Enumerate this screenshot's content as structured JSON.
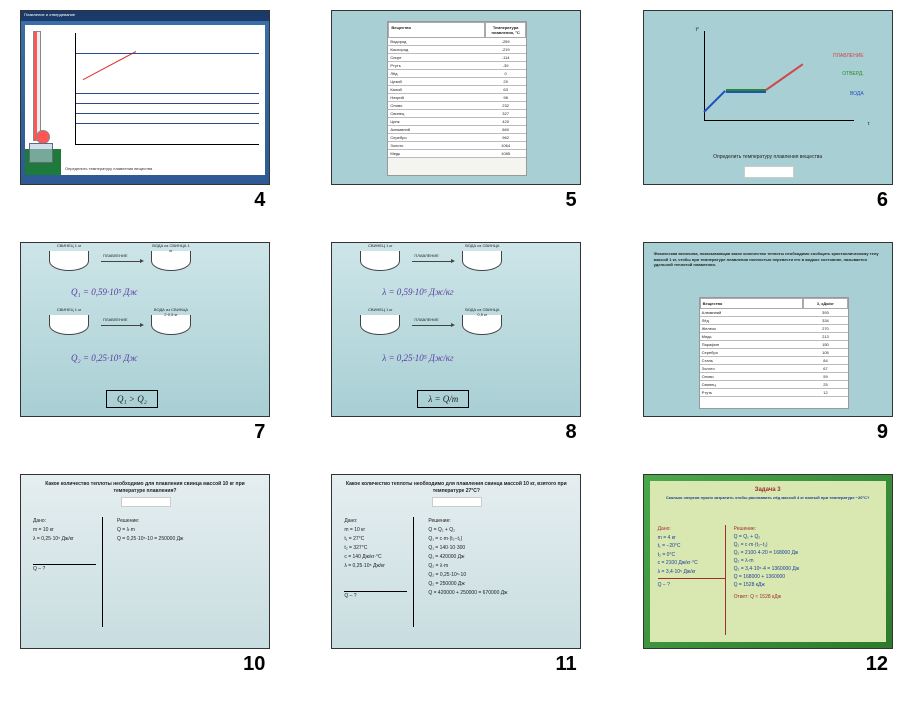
{
  "slides": {
    "4": {
      "num": "4",
      "header": "Плавление и отвердевание",
      "caption": "Определить температуру плавления вещества"
    },
    "5": {
      "num": "5",
      "table_header": {
        "c1": "Вещество",
        "c2": "Температура плавления, °C"
      },
      "rows": [
        {
          "c1": "Водород",
          "c2": "-259"
        },
        {
          "c1": "Кислород",
          "c2": "-219"
        },
        {
          "c1": "Спирт",
          "c2": "-114"
        },
        {
          "c1": "Ртуть",
          "c2": "-39"
        },
        {
          "c1": "Лёд",
          "c2": "0"
        },
        {
          "c1": "Цезий",
          "c2": "29"
        },
        {
          "c1": "Калий",
          "c2": "63"
        },
        {
          "c1": "Натрий",
          "c2": "98"
        },
        {
          "c1": "Олово",
          "c2": "232"
        },
        {
          "c1": "Свинец",
          "c2": "327"
        },
        {
          "c1": "Цинк",
          "c2": "420"
        },
        {
          "c1": "Алюминий",
          "c2": "660"
        },
        {
          "c1": "Серебро",
          "c2": "962"
        },
        {
          "c1": "Золото",
          "c2": "1064"
        },
        {
          "c1": "Медь",
          "c2": "1085"
        }
      ]
    },
    "6": {
      "num": "6",
      "ylabel": "t°",
      "xlabel": "τ",
      "legend": [
        {
          "label": "ПЛАВЛЕНИЕ",
          "color": "#d04848"
        },
        {
          "label": "ОТВЕРД.",
          "color": "#2a8a2a"
        },
        {
          "label": "ВОДА",
          "color": "#2050c0"
        }
      ],
      "caption": "Определить температуру плавления вещества"
    },
    "7": {
      "num": "7",
      "dish_a_before": "СВИНЕЦ 1 кг",
      "dish_a_after": "ВОДА из СВИНЦА 1 кг",
      "arrow_a": "ПЛАВЛЕНИЕ",
      "eq1": "Q₁ = 0,59·10⁵ Дж",
      "dish_b_before": "СВИНЕЦ 1 кг",
      "dish_b_after": "ВОДА из СВИНЦА 2·0,5 кг",
      "arrow_b": "ПЛАВЛЕНИЕ",
      "eq2": "Q₂ = 0,25·10⁵ Дж",
      "box": "Q₁ > Q₂"
    },
    "8": {
      "num": "8",
      "dish_a_before": "СВИНЕЦ 1 кг",
      "dish_a_after": "ВОДА из СВИНЦА",
      "arrow_a": "ПЛАВЛЕНИЕ",
      "eq1": "λ = 0,59·10⁵ Дж/кг",
      "dish_b_before": "СВИНЕЦ 1 кг",
      "dish_b_after": "ВОДА из СВИНЦА 0,5 кг",
      "arrow_b": "ПЛАВЛЕНИЕ",
      "eq2": "λ = 0,25·10⁵ Дж/кг",
      "box": "λ = Q/m"
    },
    "9": {
      "num": "9",
      "text": "Физическая величина, показывающая какое количество теплоты необходимо сообщить кристаллическому телу массой 1 кг, чтобы при температуре плавления полностью перевести его в жидкое состояние, называется удельной теплотой плавления.",
      "table_header": {
        "c1": "Вещество",
        "c2": "λ, кДж/кг"
      },
      "rows": [
        {
          "c1": "Алюминий",
          "c2": "393"
        },
        {
          "c1": "Лёд",
          "c2": "334"
        },
        {
          "c1": "Железо",
          "c2": "270"
        },
        {
          "c1": "Медь",
          "c2": "213"
        },
        {
          "c1": "Парафин",
          "c2": "150"
        },
        {
          "c1": "Серебро",
          "c2": "105"
        },
        {
          "c1": "Сталь",
          "c2": "84"
        },
        {
          "c1": "Золото",
          "c2": "67"
        },
        {
          "c1": "Олово",
          "c2": "59"
        },
        {
          "c1": "Свинец",
          "c2": "25"
        },
        {
          "c1": "Ртуть",
          "c2": "12"
        }
      ]
    },
    "10": {
      "num": "10",
      "title": "Какое количество теплоты необходимо для плавления свинца массой 10 кг при температуре плавления?",
      "given_hd": "Дано:",
      "given": [
        "m = 10 кг",
        "λ = 0,25·10⁵ Дж/кг"
      ],
      "find": "Q – ?",
      "sol_hd": "Решение:",
      "sol": [
        "Q = λ·m",
        "Q = 0,25·10⁵·10 = 250000 Дж"
      ]
    },
    "11": {
      "num": "11",
      "title": "Какое количество теплоты необходимо для плавления свинца массой 10 кг, взятого при температуре 27°С?",
      "given_hd": "Дано:",
      "given": [
        "m = 10 кг",
        "t₁ = 27°C",
        "t₂ = 327°C",
        "c = 140 Дж/кг·°C",
        "λ = 0,25·10⁵ Дж/кг"
      ],
      "find": "Q – ?",
      "sol_hd": "Решение:",
      "sol": [
        "Q = Q₁ + Q₂",
        "Q₁ = c·m·(t₂−t₁)",
        "Q₁ = 140·10·300",
        "Q₁ = 420000 Дж",
        "Q₂ = λ·m",
        "Q₂ = 0,25·10⁵·10",
        "Q₂ = 250000 Дж",
        "Q = 420000 + 250000 = 670000 Дж"
      ]
    },
    "12": {
      "num": "12",
      "title": "Задача 3",
      "sub": "Сколько энергии нужно затратить чтобы расплавить лёд массой 4 кг взятый при температуре −20°С?",
      "given_hd": "Дано:",
      "given": [
        "m = 4 кг",
        "t₁ = −20°C",
        "t₂ = 0°C",
        "c = 2100 Дж/кг·°C",
        "λ = 3,4·10⁵ Дж/кг"
      ],
      "find": "Q – ?",
      "sol_hd": "Решение:",
      "sol": [
        "Q = Q₁ + Q₂",
        "Q₁ = c·m·(t₂−t₁)",
        "Q₁ = 2100·4·20 = 168000 Дж",
        "Q₂ = λ·m",
        "Q₂ = 3,4·10⁵·4 = 1360000 Дж",
        "Q = 168000 + 1360000",
        "Q = 1528 кДж"
      ],
      "ans": "Ответ: Q ≈ 1528 кДж"
    }
  }
}
